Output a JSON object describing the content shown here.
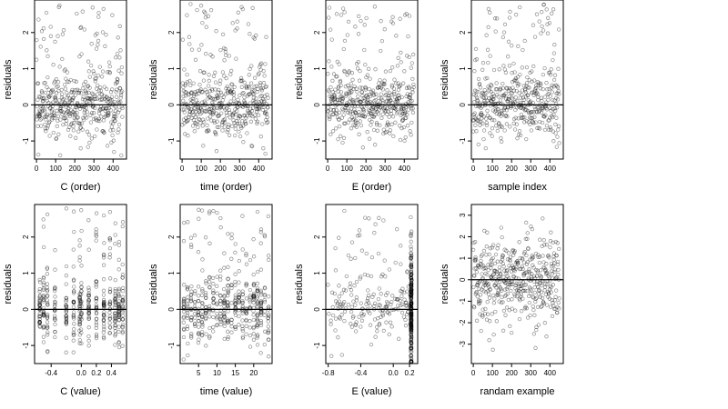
{
  "chart_data": [
    {
      "type": "scatter",
      "xlabel": "C (order)",
      "ylabel": "residuals",
      "xlim": [
        -10,
        470
      ],
      "ylim": [
        -1.5,
        2.9
      ],
      "xticks": [
        0,
        100,
        200,
        300,
        400
      ],
      "yticks": [
        -1,
        0,
        1,
        2
      ],
      "hline": 0,
      "pattern": "order",
      "n": 450
    },
    {
      "type": "scatter",
      "xlabel": "time (order)",
      "ylabel": "residuals",
      "xlim": [
        -10,
        470
      ],
      "ylim": [
        -1.5,
        2.9
      ],
      "xticks": [
        0,
        100,
        200,
        300,
        400
      ],
      "yticks": [
        -1,
        0,
        1,
        2
      ],
      "hline": 0,
      "pattern": "order",
      "n": 450
    },
    {
      "type": "scatter",
      "xlabel": "E (order)",
      "ylabel": "residuals",
      "xlim": [
        -10,
        470
      ],
      "ylim": [
        -1.5,
        2.9
      ],
      "xticks": [
        0,
        100,
        200,
        300,
        400
      ],
      "yticks": [
        -1,
        0,
        1,
        2
      ],
      "hline": 0,
      "pattern": "order",
      "n": 450
    },
    {
      "type": "scatter",
      "xlabel": "sample index",
      "ylabel": "residuals",
      "xlim": [
        -10,
        470
      ],
      "ylim": [
        -1.5,
        2.9
      ],
      "xticks": [
        0,
        100,
        200,
        300,
        400
      ],
      "yticks": [
        -1,
        0,
        1,
        2
      ],
      "hline": 0,
      "pattern": "order",
      "n": 450
    },
    {
      "type": "scatter",
      "xlabel": "C (value)",
      "ylabel": "residuals",
      "xlim": [
        -0.62,
        0.6
      ],
      "ylim": [
        -1.5,
        2.9
      ],
      "xticks": [
        -0.4,
        0.0,
        0.2,
        0.4
      ],
      "xtick_labels": [
        "-0.4",
        "0.0",
        "0.2",
        "0.4"
      ],
      "yticks": [
        -1,
        0,
        1,
        2
      ],
      "hline": 0,
      "pattern": "columns",
      "columns": [
        -0.55,
        -0.5,
        -0.45,
        -0.35,
        -0.2,
        -0.1,
        -0.02,
        0.0,
        0.1,
        0.2,
        0.3,
        0.38,
        0.45,
        0.5,
        0.55
      ],
      "n": 450
    },
    {
      "type": "scatter",
      "xlabel": "time (value)",
      "ylabel": "residuals",
      "xlim": [
        0,
        25
      ],
      "ylim": [
        -1.5,
        2.9
      ],
      "xticks": [
        5,
        10,
        15,
        20
      ],
      "yticks": [
        -1,
        0,
        1,
        2
      ],
      "hline": 0,
      "pattern": "columns",
      "columns": [
        1,
        2,
        3,
        4,
        5,
        6,
        7,
        8,
        9,
        10,
        11,
        12,
        13,
        14,
        15,
        16,
        17,
        18,
        19,
        20,
        21,
        22,
        23,
        24
      ],
      "n": 450
    },
    {
      "type": "scatter",
      "xlabel": "E (value)",
      "ylabel": "residuals",
      "xlim": [
        -0.83,
        0.3
      ],
      "ylim": [
        -1.5,
        2.9
      ],
      "xticks": [
        -0.8,
        -0.4,
        0.0,
        0.2
      ],
      "xtick_labels": [
        "-0.8",
        "-0.4",
        "0.0",
        "0.2"
      ],
      "yticks": [
        -1,
        0,
        1,
        2
      ],
      "hline": 0,
      "pattern": "spike",
      "spike_x": 0.22,
      "n": 450
    },
    {
      "type": "scatter",
      "xlabel": "randam example",
      "ylabel": "residuals",
      "xlim": [
        -10,
        470
      ],
      "ylim": [
        -3.9,
        3.5
      ],
      "xticks": [
        0,
        100,
        200,
        300,
        400
      ],
      "yticks": [
        -3,
        -2,
        -1,
        0,
        1,
        2,
        3
      ],
      "hline": 0,
      "pattern": "normal",
      "n": 450
    }
  ]
}
